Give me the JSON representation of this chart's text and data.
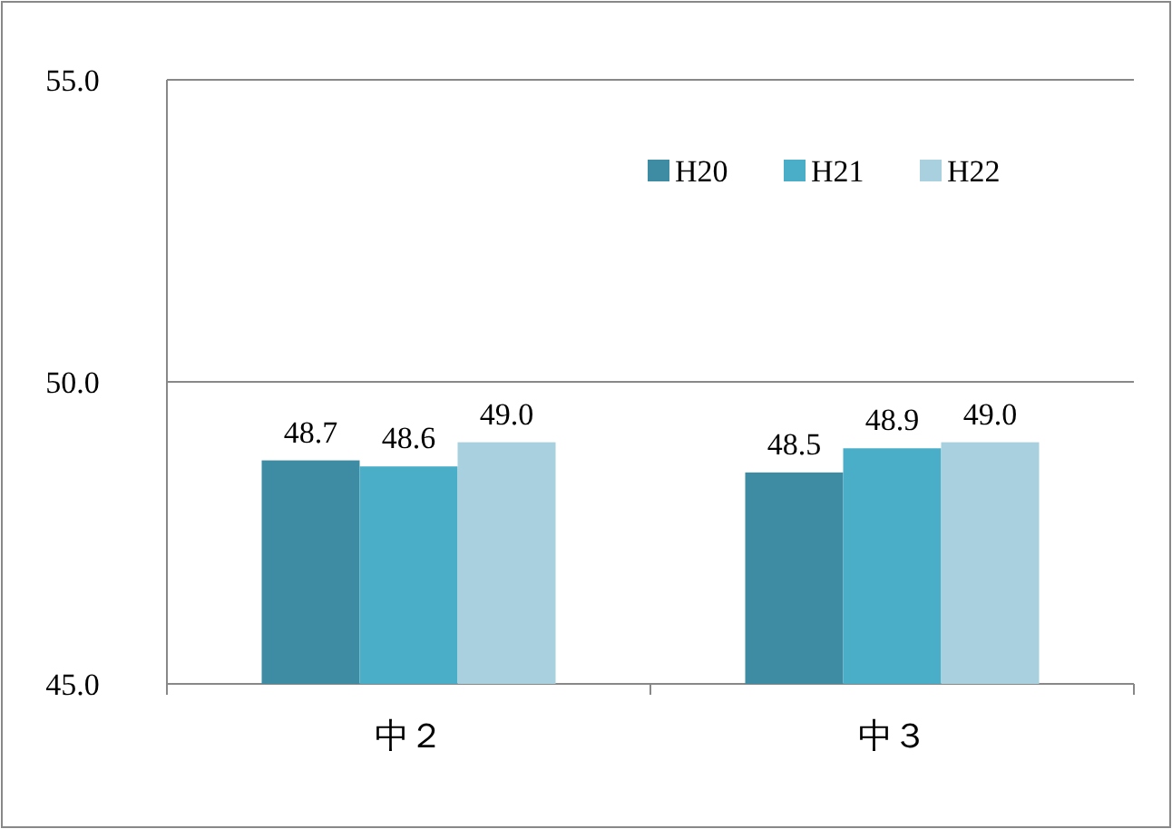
{
  "chart_data": {
    "type": "bar",
    "categories": [
      "中２",
      "中３"
    ],
    "series": [
      {
        "name": "H20",
        "color": "#3e8ca4",
        "values": [
          48.7,
          48.5
        ],
        "value_labels": [
          "48.7",
          "48.5"
        ]
      },
      {
        "name": "H21",
        "color": "#4aaec8",
        "values": [
          48.6,
          48.9
        ],
        "value_labels": [
          "48.6",
          "48.9"
        ]
      },
      {
        "name": "H22",
        "color": "#a8d0de",
        "values": [
          49.0,
          49.0
        ],
        "value_labels": [
          "49.0",
          "49.0"
        ]
      }
    ],
    "ylim": [
      45,
      55
    ],
    "yticks": [
      {
        "value": 45,
        "label": "45.0"
      },
      {
        "value": 50,
        "label": "50.0"
      },
      {
        "value": 55,
        "label": "55.0"
      }
    ],
    "grid": "y",
    "legend": "top right"
  }
}
